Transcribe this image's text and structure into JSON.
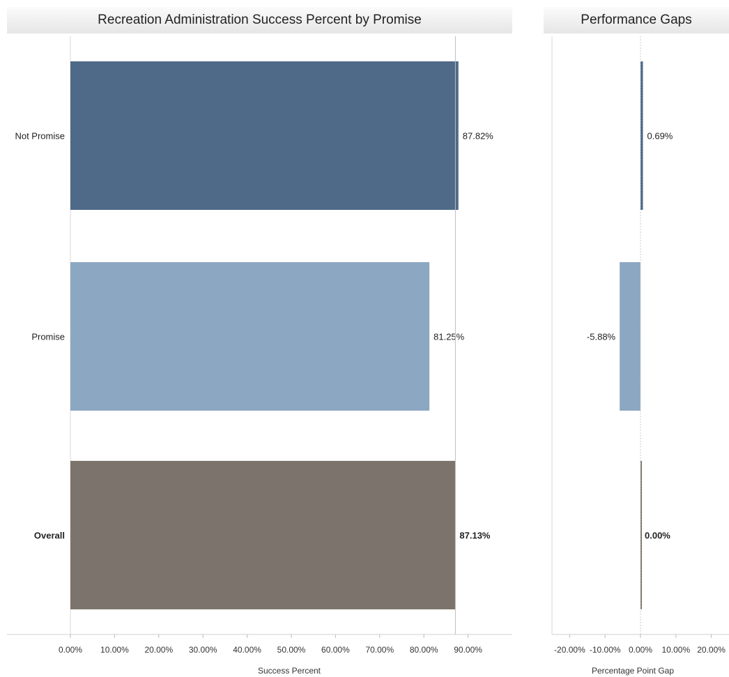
{
  "chart_data": [
    {
      "type": "bar",
      "orientation": "horizontal",
      "title": "Recreation Administration Success Percent by Promise",
      "xlabel": "Success Percent",
      "ylabel": "",
      "categories": [
        "Not Promise",
        "Promise",
        "Overall"
      ],
      "values": [
        87.82,
        81.25,
        87.13
      ],
      "value_labels": [
        "87.82%",
        "81.25%",
        "87.13%"
      ],
      "bold_categories": [
        "Overall"
      ],
      "colors": [
        "#4e6a88",
        "#8ca7c1",
        "#7c746c"
      ],
      "xlim": [
        0,
        100
      ],
      "xticks": [
        0,
        10,
        20,
        30,
        40,
        50,
        60,
        70,
        80,
        90
      ],
      "xtick_labels": [
        "0.00%",
        "10.00%",
        "20.00%",
        "30.00%",
        "40.00%",
        "50.00%",
        "60.00%",
        "70.00%",
        "80.00%",
        "90.00%"
      ],
      "reference_line": 87.13,
      "grid": false
    },
    {
      "type": "bar",
      "orientation": "horizontal",
      "title": "Performance Gaps",
      "xlabel": "Percentage Point Gap",
      "ylabel": "",
      "categories": [
        "Not Promise",
        "Promise",
        "Overall"
      ],
      "values": [
        0.69,
        -5.88,
        0.0
      ],
      "value_labels": [
        "0.69%",
        "-5.88%",
        "0.00%"
      ],
      "bold_categories": [
        "Overall"
      ],
      "colors": [
        "#4e6a88",
        "#8ca7c1",
        "#7c746c"
      ],
      "xlim": [
        -25,
        25
      ],
      "xticks": [
        -20,
        -10,
        0,
        10,
        20
      ],
      "xtick_labels": [
        "-20.00%",
        "-10.00%",
        "0.00%",
        "10.00%",
        "20.00%"
      ],
      "reference_line": 0,
      "grid": false
    }
  ]
}
